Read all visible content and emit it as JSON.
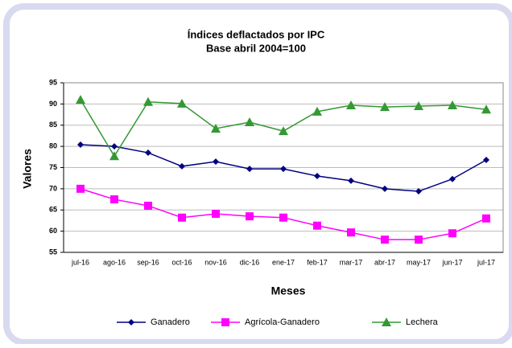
{
  "chart_data": {
    "type": "line",
    "title": "Índices deflactados por IPC",
    "subtitle": "Base abril 2004=100",
    "x_label": "Meses",
    "y_label": "Valores",
    "categories": [
      "jul-16",
      "ago-16",
      "sep-16",
      "oct-16",
      "nov-16",
      "dic-16",
      "ene-17",
      "feb-17",
      "mar-17",
      "abr-17",
      "may-17",
      "jun-17",
      "jul-17"
    ],
    "series": [
      {
        "name": "Ganadero",
        "color": "#000080",
        "marker": "diamond",
        "values": [
          80.4,
          80.0,
          78.5,
          75.3,
          76.4,
          74.7,
          74.7,
          73.0,
          71.9,
          70.0,
          69.4,
          72.3,
          76.8
        ]
      },
      {
        "name": "Agrícola-Ganadero",
        "color": "#ff00ff",
        "marker": "square",
        "values": [
          70.0,
          67.5,
          66.0,
          63.2,
          64.1,
          63.5,
          63.2,
          61.3,
          59.7,
          58.0,
          58.0,
          59.5,
          63.0
        ]
      },
      {
        "name": "Lechera",
        "color": "#339933",
        "marker": "triangle",
        "values": [
          91.0,
          77.7,
          90.5,
          90.1,
          84.2,
          85.7,
          83.6,
          88.2,
          89.7,
          89.3,
          89.5,
          89.7,
          88.7
        ]
      }
    ],
    "ylim": [
      55,
      95
    ],
    "yticks": [
      55,
      60,
      65,
      70,
      75,
      80,
      85,
      90,
      95
    ],
    "grid": true,
    "legend": "bottom"
  }
}
